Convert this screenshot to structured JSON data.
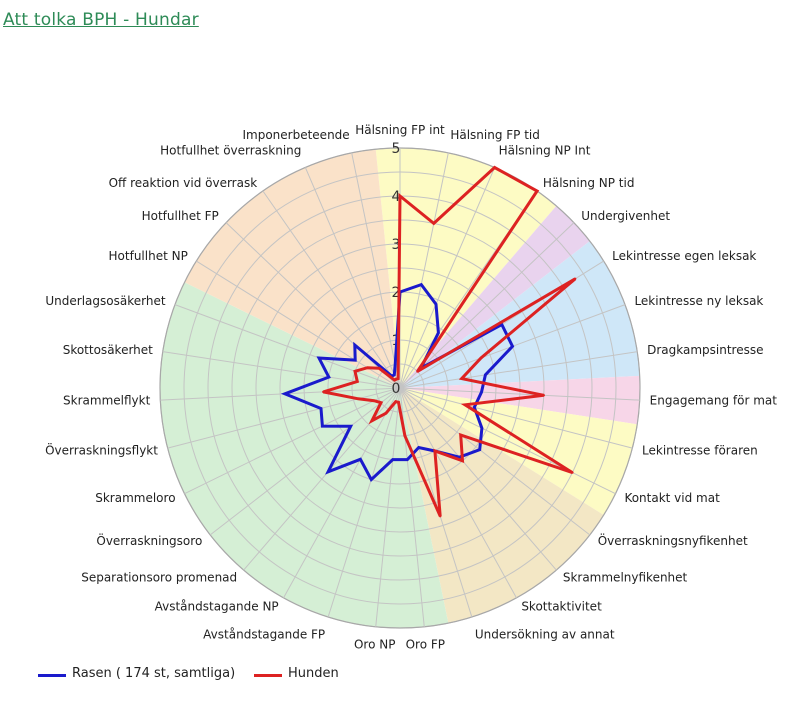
{
  "page": {
    "title": "Att tolka BPH - Hundar"
  },
  "chart_data": {
    "type": "radar",
    "title": "",
    "rlim": [
      0,
      5
    ],
    "rticks": [
      "0",
      "1",
      "2",
      "3",
      "4",
      "5"
    ],
    "grid": true,
    "legend_position": "bottom-left",
    "categories": [
      "Hälsning FP int",
      "Hälsning FP tid",
      "Hälsning NP Int",
      "Hälsning NP tid",
      "Undergivenhet",
      "Lekintresse egen leksak",
      "Lekintresse ny leksak",
      "Dragkampsintresse",
      "Engagemang för mat",
      "Lekintresse föraren",
      "Kontakt vid mat",
      "Överraskningsnyfikenhet",
      "Skrammelnyfikenhet",
      "Skottaktivitet",
      "Undersökning av annat",
      "Oro FP",
      "Oro NP",
      "Avståndstagande FP",
      "Avståndstagande NP",
      "Separationsoro promenad",
      "Överraskningsoro",
      "Skrammeloro",
      "Överraskningsflykt",
      "Skrammelflykt",
      "Skottosäkerhet",
      "Underlagsosäkerhet",
      "Hotfullhet NP",
      "Hotfullhet FP",
      "Off reaktion vid överrask",
      "Hotfullhet överraskning",
      "Imponerbeteende"
    ],
    "series": [
      {
        "name": "Rasen ( 174 st, samtliga)",
        "color": "#1a1acc",
        "values": [
          2.0,
          2.2,
          1.9,
          1.4,
          0.6,
          2.5,
          2.5,
          1.8,
          1.7,
          1.6,
          1.9,
          2.1,
          1.9,
          1.5,
          1.3,
          1.5,
          1.5,
          2.0,
          1.7,
          2.3,
          1.3,
          1.8,
          1.7,
          2.4,
          1.5,
          1.8,
          1.1,
          1.3,
          0.3,
          0.3,
          0.5
        ]
      },
      {
        "name": "Hunden",
        "color": "#dd2222",
        "values": [
          4.0,
          3.5,
          5.0,
          5.0,
          0.5,
          4.3,
          1.8,
          1.3,
          3.0,
          1.4,
          4.0,
          1.6,
          2.0,
          1.5,
          2.8,
          1.0,
          0.3,
          0.3,
          0.6,
          0.9,
          0.5,
          0.6,
          0.9,
          1.6,
          0.9,
          1.0,
          0.8,
          0.6,
          0.2,
          0.2,
          0.2
        ]
      }
    ],
    "sectors": [
      {
        "from": 0,
        "to": 4,
        "color": "#fdfbc4"
      },
      {
        "from": 4,
        "to": 5,
        "color": "#e9d3ee"
      },
      {
        "from": 5,
        "to": 8,
        "color": "#cfe7f8"
      },
      {
        "from": 8,
        "to": 9,
        "color": "#f7d6e8"
      },
      {
        "from": 9,
        "to": 11,
        "color": "#fdfbc4"
      },
      {
        "from": 11,
        "to": 15,
        "color": "#f3e7c5"
      },
      {
        "from": 15,
        "to": 26,
        "color": "#d5efd5"
      },
      {
        "from": 26,
        "to": 31,
        "color": "#fae2c9"
      }
    ]
  }
}
